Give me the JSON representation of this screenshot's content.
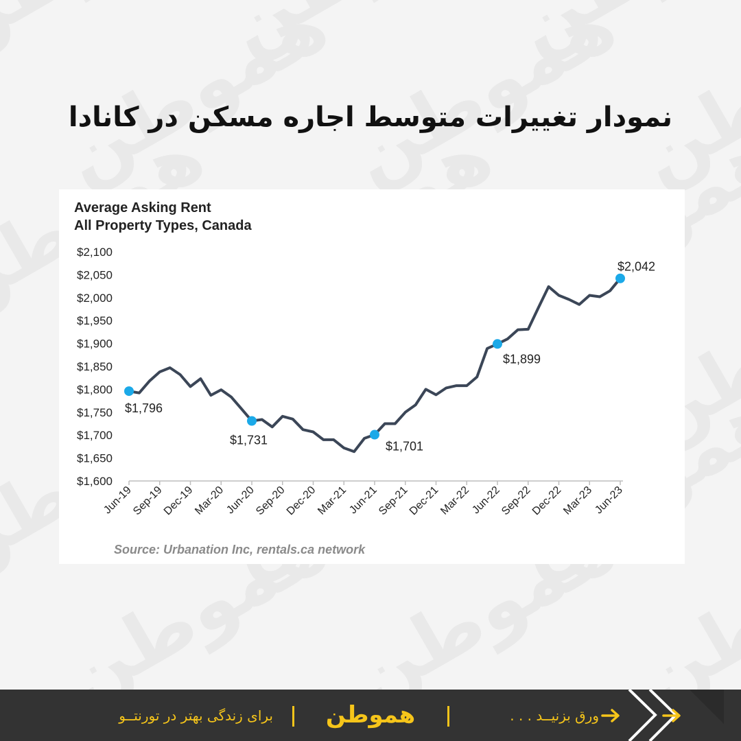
{
  "page": {
    "title": "نمودار تغییرات متوسط اجاره مسکن در کانادا",
    "watermark_text": "هموطن"
  },
  "footer": {
    "tagline": "برای زندگی بهتر در تورنتــو",
    "logo_text": "هموطن",
    "swipe_text": "ورق بزنیــد . . .",
    "accent_color": "#f6c51a",
    "background_color": "#333333",
    "icons": [
      "arrow-right-icon",
      "chevrons-icon"
    ]
  },
  "chart_data": {
    "type": "line",
    "title": "Average Asking Rent",
    "subtitle": "All Property Types, Canada",
    "source": "Source: Urbanation Inc, rentals.ca network",
    "xlabel": "",
    "ylabel": "",
    "ylim": [
      1600,
      2100
    ],
    "yticks": [
      1600,
      1650,
      1700,
      1750,
      1800,
      1850,
      1900,
      1950,
      2000,
      2050,
      2100
    ],
    "ytick_labels": [
      "$1,600",
      "$1,650",
      "$1,700",
      "$1,750",
      "$1,800",
      "$1,850",
      "$1,900",
      "$1,950",
      "$2,000",
      "$2,050",
      "$2,100"
    ],
    "xtick_labels": [
      "Jun-19",
      "Sep-19",
      "Dec-19",
      "Mar-20",
      "Jun-20",
      "Sep-20",
      "Dec-20",
      "Mar-21",
      "Jun-21",
      "Sep-21",
      "Dec-21",
      "Mar-22",
      "Jun-22",
      "Sep-22",
      "Dec-22",
      "Mar-23",
      "Jun-23"
    ],
    "grid": false,
    "line_color": "#3b4657",
    "marker_color": "#1ba9e8",
    "series": [
      {
        "name": "",
        "x": [
          "Jun-19",
          "Jul-19",
          "Aug-19",
          "Sep-19",
          "Oct-19",
          "Nov-19",
          "Dec-19",
          "Jan-20",
          "Feb-20",
          "Mar-20",
          "Apr-20",
          "May-20",
          "Jun-20",
          "Jul-20",
          "Aug-20",
          "Sep-20",
          "Oct-20",
          "Nov-20",
          "Dec-20",
          "Jan-21",
          "Feb-21",
          "Mar-21",
          "Apr-21",
          "May-21",
          "Jun-21",
          "Jul-21",
          "Aug-21",
          "Sep-21",
          "Oct-21",
          "Nov-21",
          "Dec-21",
          "Jan-22",
          "Feb-22",
          "Mar-22",
          "Apr-22",
          "May-22",
          "Jun-22",
          "Jul-22",
          "Aug-22",
          "Sep-22",
          "Oct-22",
          "Nov-22",
          "Dec-22",
          "Jan-23",
          "Feb-23",
          "Mar-23",
          "Apr-23",
          "May-23",
          "Jun-23"
        ],
        "values": [
          1796,
          1792,
          1818,
          1838,
          1847,
          1832,
          1806,
          1823,
          1787,
          1799,
          1783,
          1757,
          1731,
          1734,
          1718,
          1741,
          1735,
          1712,
          1707,
          1690,
          1690,
          1672,
          1664,
          1693,
          1701,
          1725,
          1725,
          1750,
          1766,
          1800,
          1788,
          1803,
          1808,
          1808,
          1827,
          1889,
          1899,
          1910,
          1930,
          1931,
          1978,
          2024,
          2005,
          1996,
          1985,
          2005,
          2002,
          2015,
          2042
        ]
      }
    ],
    "annotations": [
      {
        "x": "Jun-19",
        "value": 1796,
        "label": "$1,796"
      },
      {
        "x": "Jun-20",
        "value": 1731,
        "label": "$1,731"
      },
      {
        "x": "Jun-21",
        "value": 1701,
        "label": "$1,701"
      },
      {
        "x": "Jun-22",
        "value": 1899,
        "label": "$1,899"
      },
      {
        "x": "Jun-23",
        "value": 2042,
        "label": "$2,042"
      }
    ]
  }
}
